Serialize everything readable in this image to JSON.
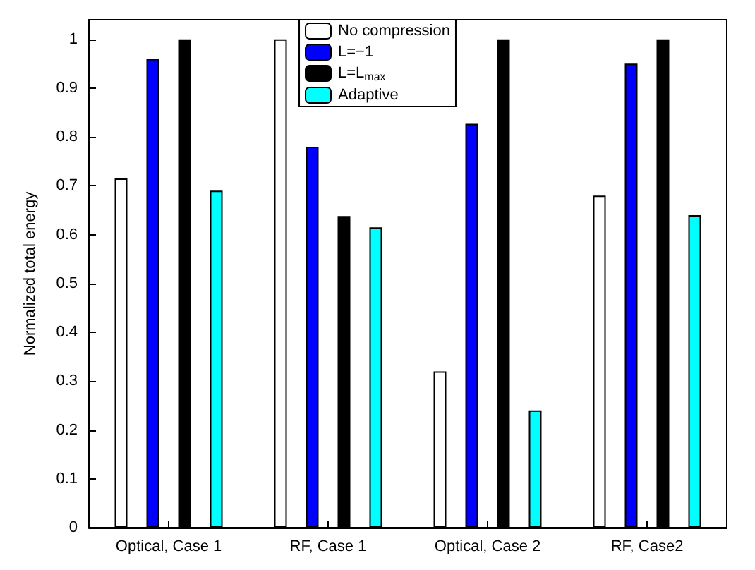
{
  "chart_data": {
    "type": "bar",
    "ylabel": "Normalized total energy",
    "categories": [
      "Optical, Case 1",
      "RF, Case 1",
      "Optical, Case 2",
      "RF, Case2"
    ],
    "series": [
      {
        "name": "No compression",
        "color": "#ffffff",
        "values": [
          0.715,
          1,
          0.32,
          0.68
        ]
      },
      {
        "name": "L=−1",
        "color": "#0000ff",
        "values": [
          0.96,
          0.78,
          0.827,
          0.95
        ]
      },
      {
        "name": "L=L$_{max}$",
        "color": "#000000",
        "values": [
          1,
          0.638,
          1,
          1
        ]
      },
      {
        "name": "Adaptive",
        "color": "#00ffff",
        "values": [
          0.69,
          0.615,
          0.24,
          0.64
        ]
      }
    ],
    "ylim": [
      0,
      1.04
    ],
    "yticks": [
      0,
      0.1,
      0.2,
      0.3,
      0.4,
      0.5,
      0.6,
      0.7,
      0.8,
      0.9,
      1
    ],
    "legend": "top",
    "grid": false
  }
}
